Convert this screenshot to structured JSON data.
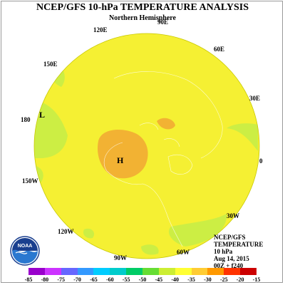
{
  "title": "NCEP/GFS 10-hPa TEMPERATURE ANALYSIS",
  "subtitle": "Northern Hemisphere",
  "longitude_labels": {
    "lon_90e": "90E",
    "lon_120e": "120E",
    "lon_60e": "60E",
    "lon_150e": "150E",
    "lon_30e": "30E",
    "lon_180": "180",
    "lon_0": "0",
    "lon_150w": "150W",
    "lon_30w": "30W",
    "lon_120w": "120W",
    "lon_60w": "60W",
    "lon_90w": "90W"
  },
  "pressure_centers": {
    "low": "L",
    "high": "H"
  },
  "info": {
    "line1": "NCEP/GFS",
    "line2": "TEMPERATURE",
    "line3": "10 hPa",
    "line4": "Aug 14, 2015",
    "line5": "00Z + f240"
  },
  "logo_text": "NOAA",
  "colorbar": {
    "labels": [
      "-85",
      "-80",
      "-75",
      "-70",
      "-65",
      "-60",
      "-55",
      "-50",
      "-45",
      "-40",
      "-35",
      "-30",
      "-25",
      "-20",
      "-15"
    ],
    "colors": [
      "#9900cc",
      "#cc33ff",
      "#6666ff",
      "#3399ff",
      "#00ccff",
      "#00cccc",
      "#00cc66",
      "#66dd33",
      "#ccee33",
      "#ffff33",
      "#ffcc33",
      "#ff9900",
      "#ff3300",
      "#cc0000",
      "#999999"
    ]
  },
  "colors": {
    "globe_yellow": "#f5f033",
    "light_green": "#ccee44",
    "orange_warm": "#f2b233"
  }
}
